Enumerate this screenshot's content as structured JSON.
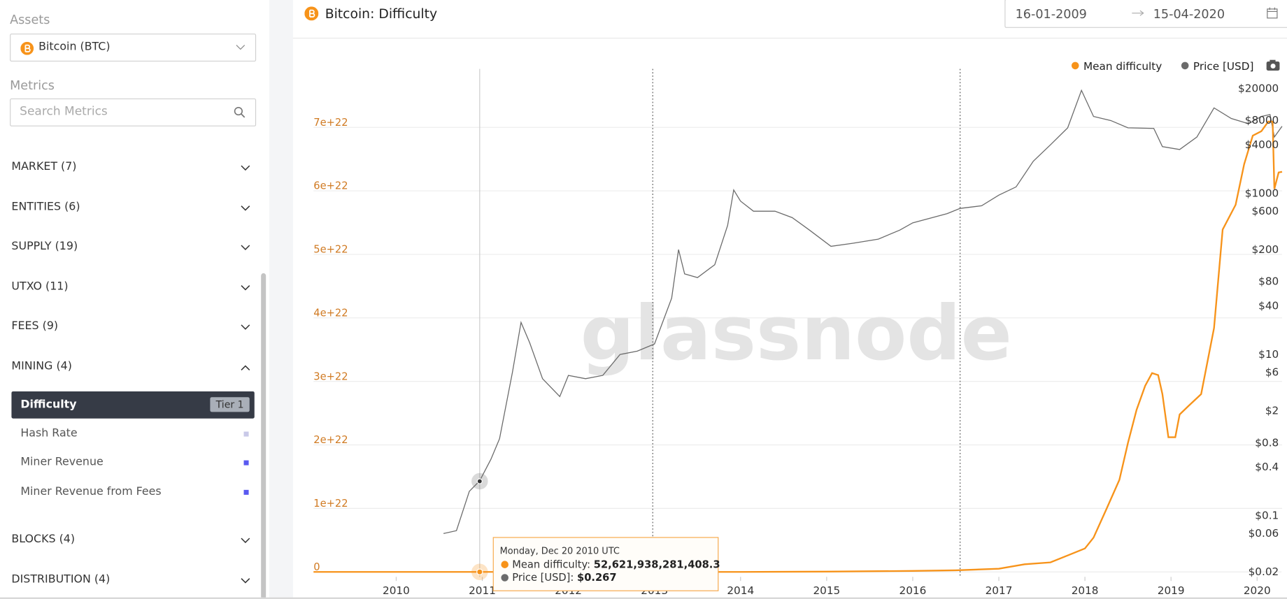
{
  "sidebar": {
    "assets_label": "Assets",
    "asset": "Bitcoin (BTC)",
    "metrics_label": "Metrics",
    "search_placeholder": "Search Metrics",
    "groups": [
      "MARKET (7)",
      "ENTITIES (6)",
      "SUPPLY (19)",
      "UTXO (11)",
      "FEES (9)",
      "MINING (4)",
      "BLOCKS (4)",
      "DISTRIBUTION (4)"
    ],
    "items": [
      {
        "name": "Difficulty",
        "badge": "Tier 1"
      },
      {
        "name": "Hash Rate"
      },
      {
        "name": "Miner Revenue"
      },
      {
        "name": "Miner Revenue from Fees"
      }
    ]
  },
  "header": {
    "title": "Bitcoin: Difficulty",
    "date_from": "16-01-2009",
    "date_to": "15-04-2020"
  },
  "chart_data": {
    "type": "line",
    "watermark": "glassnode",
    "legend": "top-right",
    "grid": true,
    "xlim": [
      2009.04,
      2020.29
    ],
    "xticks": [
      2010,
      2011,
      2012,
      2013,
      2014,
      2015,
      2016,
      2017,
      2018,
      2019,
      2020
    ],
    "ylim": [
      0,
      7.92e+22
    ],
    "yticks": [
      0,
      {
        "value": 1e+22,
        "label": "1e+22"
      },
      {
        "value": 2e+22,
        "label": "2e+22"
      },
      {
        "value": 3e+22,
        "label": "3e+22"
      },
      {
        "value": 4e+22,
        "label": "4e+22"
      },
      {
        "value": 5e+22,
        "label": "5e+22"
      },
      {
        "value": 6e+22,
        "label": "6e+22"
      },
      {
        "value": 7e+22,
        "label": "7e+22"
      }
    ],
    "y2lim": [
      0.02,
      35000
    ],
    "y2log": true,
    "y2ticks": [
      {
        "value": 0.02,
        "label": "$0.02"
      },
      {
        "value": 0.06,
        "label": "$0.06"
      },
      {
        "value": 0.1,
        "label": "$0.1"
      },
      {
        "value": 0.4,
        "label": "$0.4"
      },
      {
        "value": 0.8,
        "label": "$0.8"
      },
      {
        "value": 2,
        "label": "$2"
      },
      {
        "value": 6,
        "label": "$6"
      },
      {
        "value": 10,
        "label": "$10"
      },
      {
        "value": 40,
        "label": "$40"
      },
      {
        "value": 80,
        "label": "$80"
      },
      {
        "value": 200,
        "label": "$200"
      },
      {
        "value": 600,
        "label": "$600"
      },
      {
        "value": 1000,
        "label": "$1000"
      },
      {
        "value": 4000,
        "label": "$4000"
      },
      {
        "value": 8000,
        "label": "$8000"
      },
      {
        "value": 20000,
        "label": "$20000"
      }
    ],
    "vlines": [
      2012.98,
      2016.55
    ],
    "series": [
      {
        "name": "Mean difficulty",
        "color": "#f7931a",
        "x": [
          2009.04,
          2013.0,
          2014.0,
          2015.0,
          2016.0,
          2016.5,
          2017.0,
          2017.3,
          2017.6,
          2017.8,
          2018.0,
          2018.1,
          2018.25,
          2018.4,
          2018.5,
          2018.6,
          2018.7,
          2018.78,
          2018.85,
          2018.9,
          2018.97,
          2019.05,
          2019.1,
          2019.2,
          2019.35,
          2019.5,
          2019.6,
          2019.75,
          2019.85,
          2019.95,
          2020.05,
          2020.13,
          2020.18,
          2020.2,
          2020.25,
          2020.29
        ],
        "values": [
          0,
          4e+17,
          5e+18,
          5e+19,
          1.5e+20,
          2.6e+20,
          5e+20,
          1.2e+21,
          1.5e+21,
          2.6e+21,
          3.7e+21,
          5.4e+21,
          9.9e+21,
          1.45e+22,
          2.03e+22,
          2.55e+22,
          2.93e+22,
          3.13e+22,
          3.1e+22,
          2.8e+22,
          2.12e+22,
          2.12e+22,
          2.48e+22,
          2.61e+22,
          2.8e+22,
          3.84e+22,
          5.39e+22,
          5.78e+22,
          6.42e+22,
          6.87e+22,
          6.94e+22,
          7.09e+22,
          7.09e+22,
          6.03e+22,
          6.29e+22,
          6.3e+22
        ]
      },
      {
        "name": "Price [USD]",
        "color": "#6b6b6b",
        "axis": "y2",
        "x": [
          2010.55,
          2010.7,
          2010.85,
          2010.97,
          2011.1,
          2011.2,
          2011.35,
          2011.45,
          2011.55,
          2011.7,
          2011.9,
          2012.0,
          2012.2,
          2012.4,
          2012.6,
          2012.8,
          2013.0,
          2013.2,
          2013.28,
          2013.35,
          2013.5,
          2013.7,
          2013.85,
          2013.92,
          2014.0,
          2014.15,
          2014.4,
          2014.6,
          2014.8,
          2015.05,
          2015.3,
          2015.6,
          2015.85,
          2016.0,
          2016.4,
          2016.55,
          2016.8,
          2017.0,
          2017.2,
          2017.4,
          2017.6,
          2017.8,
          2017.96,
          2018.1,
          2018.3,
          2018.5,
          2018.8,
          2018.9,
          2019.1,
          2019.3,
          2019.5,
          2019.7,
          2019.9,
          2020.05,
          2020.15,
          2020.2,
          2020.29
        ],
        "values": [
          0.06,
          0.065,
          0.2,
          0.27,
          0.5,
          0.9,
          6,
          25,
          14,
          5,
          3,
          5.5,
          5,
          5.5,
          10,
          11,
          13.5,
          50,
          200,
          100,
          90,
          130,
          400,
          1100,
          800,
          600,
          600,
          500,
          350,
          220,
          240,
          270,
          350,
          430,
          560,
          650,
          700,
          950,
          1200,
          2500,
          4000,
          6500,
          19000,
          9000,
          8000,
          6500,
          6400,
          3800,
          3500,
          5000,
          11500,
          8500,
          7300,
          9000,
          9500,
          5000,
          6800
        ]
      }
    ],
    "tooltip": {
      "x": 2010.97,
      "date": "Monday, Dec 20 2010 UTC",
      "items": [
        {
          "name": "Mean difficulty:",
          "value": 52621938281408.3,
          "label": "52,621,938,281,408.3"
        },
        {
          "name": "Price [USD]:",
          "value": 0.267,
          "label": "$0.267"
        }
      ]
    }
  }
}
